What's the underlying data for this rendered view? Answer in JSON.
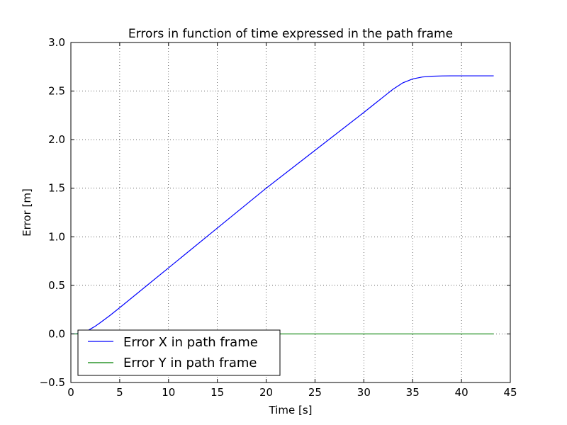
{
  "chart_data": {
    "type": "line",
    "title": "Errors in function of time expressed in the path frame",
    "xlabel": "Time [s]",
    "ylabel": "Error [m]",
    "xlim": [
      0,
      45
    ],
    "ylim": [
      -0.5,
      3.0
    ],
    "xticks": [
      0,
      5,
      10,
      15,
      20,
      25,
      30,
      35,
      40,
      45
    ],
    "yticks": [
      -0.5,
      0.0,
      0.5,
      1.0,
      1.5,
      2.0,
      2.5,
      3.0
    ],
    "xtick_labels": [
      "0",
      "5",
      "10",
      "15",
      "20",
      "25",
      "30",
      "35",
      "40",
      "45"
    ],
    "ytick_labels": [
      "−0.5",
      "0.0",
      "0.5",
      "1.0",
      "1.5",
      "2.0",
      "2.5",
      "3.0"
    ],
    "grid": true,
    "legend_position": "lower-left",
    "series": [
      {
        "name": "Error X in path frame",
        "color": "#0000ff",
        "x": [
          0.0,
          0.5,
          1.0,
          1.5,
          2.0,
          2.5,
          3.0,
          4.0,
          5.0,
          10.0,
          15.0,
          20.0,
          25.0,
          30.0,
          31.0,
          32.0,
          33.0,
          34.0,
          35.0,
          36.0,
          37.0,
          38.0,
          39.0,
          40.0,
          41.0,
          42.0,
          43.3
        ],
        "y": [
          0.0,
          0.0,
          0.005,
          0.02,
          0.05,
          0.08,
          0.115,
          0.19,
          0.27,
          0.68,
          1.09,
          1.5,
          1.89,
          2.28,
          2.36,
          2.44,
          2.52,
          2.585,
          2.625,
          2.645,
          2.653,
          2.656,
          2.657,
          2.657,
          2.657,
          2.657,
          2.657
        ]
      },
      {
        "name": "Error Y in path frame",
        "color": "#008000",
        "x": [
          0.0,
          43.3
        ],
        "y": [
          0.0,
          0.0
        ]
      }
    ]
  }
}
